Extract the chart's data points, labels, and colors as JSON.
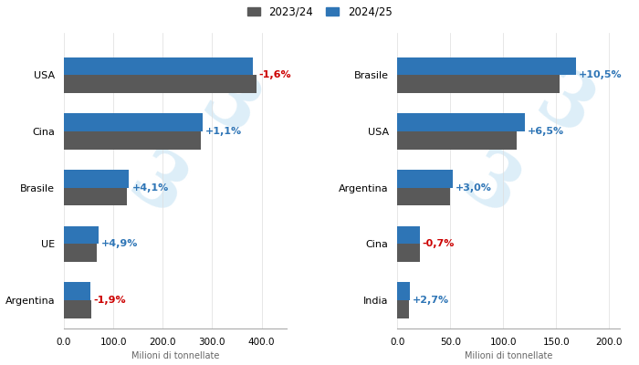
{
  "corn": {
    "categories": [
      "USA",
      "Cina",
      "Brasile",
      "UE",
      "Argentina"
    ],
    "values_2324": [
      389,
      277,
      127,
      67,
      55
    ],
    "values_2425": [
      383,
      280,
      132,
      70,
      54
    ],
    "changes": [
      "-1,6%",
      "+1,1%",
      "+4,1%",
      "+4,9%",
      "-1,9%"
    ],
    "change_colors": [
      "#cc0000",
      "#2e75b6",
      "#2e75b6",
      "#2e75b6",
      "#cc0000"
    ],
    "xlim": [
      0,
      450
    ],
    "xticks": [
      0,
      100,
      200,
      300,
      400
    ],
    "xlabel": "Milioni di tonnellate"
  },
  "soy": {
    "categories": [
      "Brasile",
      "USA",
      "Argentina",
      "Cina",
      "India"
    ],
    "values_2324": [
      153,
      113,
      50,
      21,
      11
    ],
    "values_2425": [
      169,
      120,
      52,
      21,
      11.3
    ],
    "changes": [
      "+10,5%",
      "+6,5%",
      "+3,0%",
      "-0,7%",
      "+2,7%"
    ],
    "change_colors": [
      "#2e75b6",
      "#2e75b6",
      "#2e75b6",
      "#cc0000",
      "#2e75b6"
    ],
    "xlim": [
      0,
      210
    ],
    "xticks": [
      0,
      50,
      100,
      150,
      200
    ],
    "xlabel": "Milioni di tonnellate"
  },
  "color_2324": "#595959",
  "color_2425": "#2e75b6",
  "legend_label_2324": "2023/24",
  "legend_label_2425": "2024/25",
  "background_color": "#ffffff",
  "bar_height": 0.32,
  "watermark_color": "#ddeef8",
  "watermark_text": "3"
}
